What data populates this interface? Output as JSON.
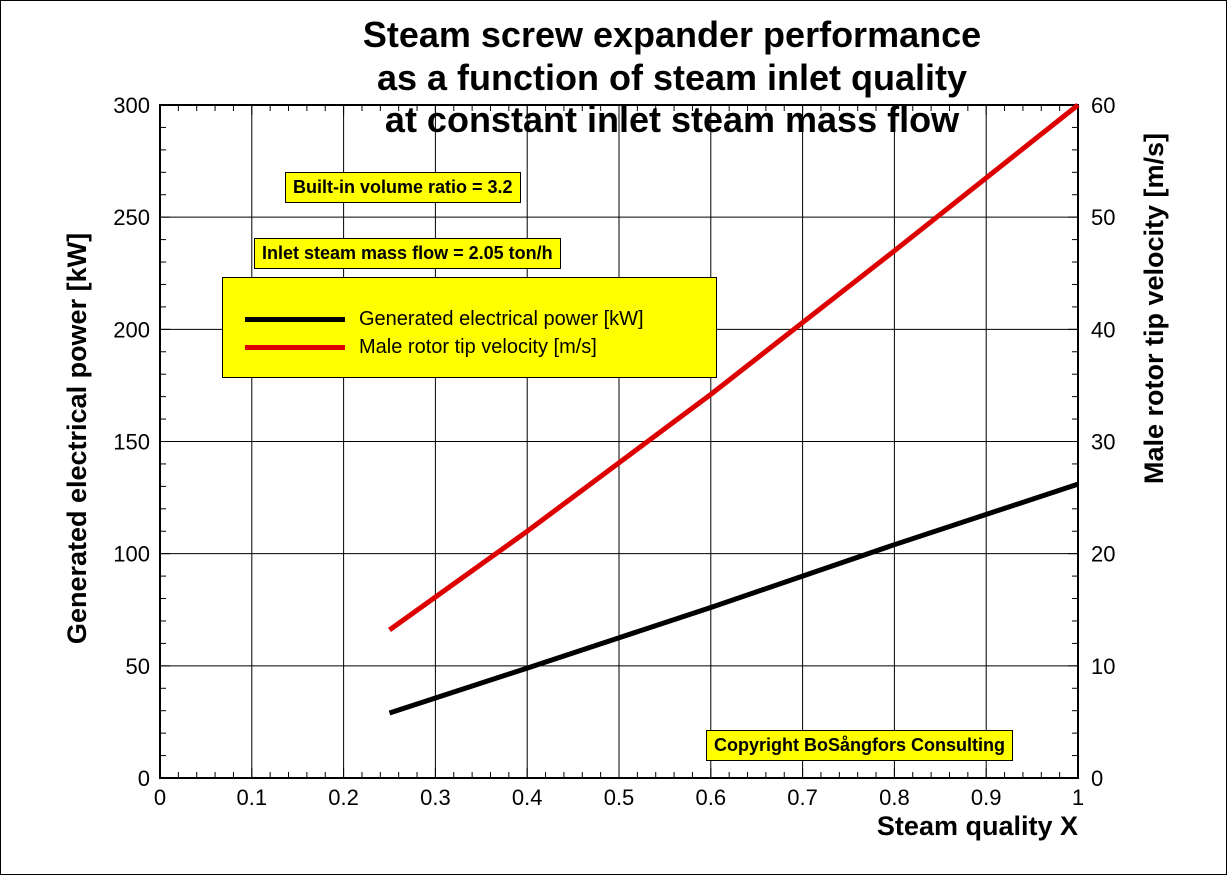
{
  "title_lines": [
    "Steam screw expander performance",
    "as a function of steam inlet quality",
    "at constant inlet steam mass flow"
  ],
  "annotations": {
    "volume_ratio": "Built-in volume ratio = 3.2",
    "mass_flow": "Inlet steam mass flow = 2.05 ton/h",
    "copyright": "Copyright BoSångfors Consulting"
  },
  "legend": [
    {
      "label": "Generated electrical power [kW]",
      "color": "#000000"
    },
    {
      "label": "Male rotor tip velocity [m/s]",
      "color": "#dd0000"
    }
  ],
  "colors": {
    "background": "#ffffff",
    "box": "#ffff00",
    "power": "#000000",
    "velocity": "#dd0000"
  },
  "chart_data": {
    "type": "line",
    "title": "Steam screw expander performance as a function of steam inlet quality at constant inlet steam mass flow",
    "xlabel": "Steam quality X",
    "ylabel": "Generated electrical power [kW]",
    "y2label": "Male rotor tip velocity [m/s]",
    "xlim": [
      0,
      1
    ],
    "ylim": [
      0,
      300
    ],
    "y2lim": [
      0,
      60
    ],
    "xticks": [
      "0",
      "0.1",
      "0.2",
      "0.3",
      "0.4",
      "0.5",
      "0.6",
      "0.7",
      "0.8",
      "0.9",
      "1"
    ],
    "yticks": [
      "0",
      "50",
      "100",
      "150",
      "200",
      "250",
      "300"
    ],
    "y2ticks": [
      "0",
      "10",
      "20",
      "30",
      "40",
      "50",
      "60"
    ],
    "grid": true,
    "legend_position": "top-left",
    "series": [
      {
        "name": "Generated electrical power [kW]",
        "axis": "left",
        "x": [
          0.25,
          0.4,
          0.6,
          0.8,
          1.0
        ],
        "y": [
          29,
          49,
          76,
          104,
          131
        ]
      },
      {
        "name": "Male rotor tip velocity [m/s]",
        "axis": "right",
        "x": [
          0.25,
          0.4,
          0.6,
          0.8,
          1.0
        ],
        "y": [
          13.2,
          22.0,
          34.2,
          47.0,
          60.0
        ]
      }
    ]
  }
}
